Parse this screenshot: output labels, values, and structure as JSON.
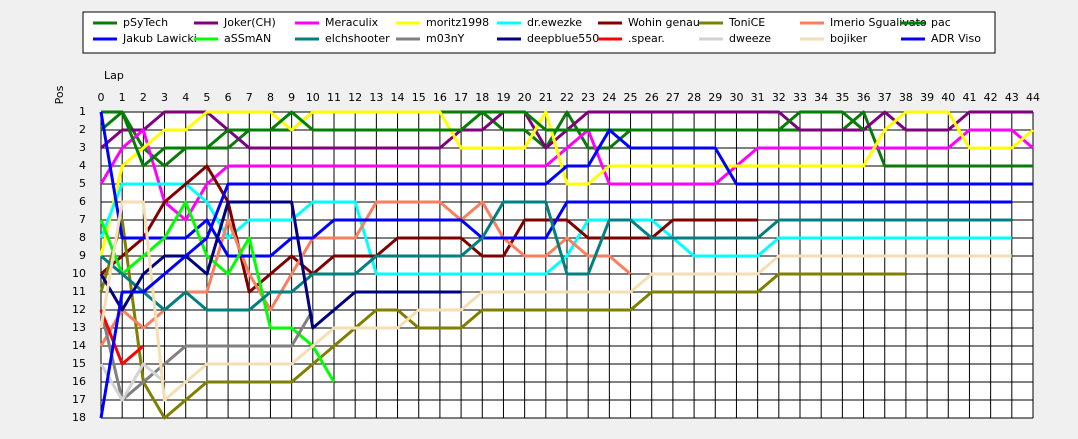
{
  "chart_data": {
    "type": "line",
    "x_label": "Lap",
    "y_label": "Pos",
    "xlim": [
      0,
      44
    ],
    "ylim": [
      18,
      1
    ],
    "grid": true,
    "x": [
      0,
      1,
      2,
      3,
      4,
      5,
      6,
      7,
      8,
      9,
      10,
      11,
      12,
      13,
      14,
      15,
      16,
      17,
      18,
      19,
      20,
      21,
      22,
      23,
      24,
      25,
      26,
      27,
      28,
      29,
      30,
      31,
      32,
      33,
      34,
      35,
      36,
      37,
      38,
      39,
      40,
      41,
      42,
      43,
      44
    ],
    "xticks": [
      0,
      1,
      2,
      3,
      4,
      5,
      6,
      7,
      8,
      9,
      10,
      11,
      12,
      13,
      14,
      15,
      16,
      17,
      18,
      19,
      20,
      21,
      22,
      23,
      24,
      25,
      26,
      27,
      28,
      29,
      30,
      31,
      32,
      33,
      34,
      35,
      36,
      37,
      38,
      39,
      40,
      41,
      42,
      43,
      44
    ],
    "yticks": [
      1,
      2,
      3,
      4,
      5,
      6,
      7,
      8,
      9,
      10,
      11,
      12,
      13,
      14,
      15,
      16,
      17,
      18
    ],
    "series": [
      {
        "name": "pSyTech",
        "color": "#0a7a0a",
        "values": [
          1,
          1,
          3,
          4,
          3,
          3,
          3,
          2,
          2,
          2,
          1,
          1,
          1,
          1,
          1,
          1,
          1,
          1,
          1,
          2,
          2,
          3,
          1,
          3,
          3,
          2,
          2,
          2,
          2,
          2,
          2,
          2,
          2,
          2,
          2,
          2,
          1,
          4,
          4,
          4,
          4,
          4,
          4,
          4,
          4
        ]
      },
      {
        "name": "Joker(CH)",
        "color": "#800080",
        "values": [
          3,
          2,
          2,
          1,
          1,
          1,
          2,
          3,
          3,
          3,
          3,
          3,
          3,
          3,
          3,
          3,
          3,
          2,
          2,
          1,
          1,
          3,
          2,
          1,
          1,
          1,
          1,
          1,
          1,
          1,
          1,
          1,
          1,
          2,
          2,
          2,
          2,
          1,
          2,
          2,
          2,
          1,
          1,
          1,
          1
        ]
      },
      {
        "name": "Meraculix",
        "color": "#ff00ff",
        "values": [
          5,
          3,
          2,
          6,
          7,
          5,
          4,
          4,
          4,
          4,
          4,
          4,
          4,
          4,
          4,
          4,
          4,
          4,
          4,
          4,
          4,
          4,
          3,
          2,
          5,
          5,
          5,
          5,
          5,
          5,
          4,
          3,
          3,
          3,
          3,
          3,
          3,
          3,
          3,
          3,
          3,
          2,
          2,
          2,
          3
        ]
      },
      {
        "name": "moritz1998",
        "color": "#ffff00",
        "values": [
          9,
          4,
          3,
          2,
          2,
          1,
          1,
          1,
          1,
          2,
          1,
          1,
          1,
          1,
          1,
          1,
          1,
          3,
          3,
          3,
          3,
          1,
          5,
          5,
          4,
          4,
          4,
          4,
          4,
          4,
          4,
          4,
          4,
          4,
          4,
          4,
          4,
          2,
          1,
          1,
          1,
          3,
          3,
          3,
          2
        ]
      },
      {
        "name": "dr.ewezke",
        "color": "#00ffff",
        "values": [
          8,
          5,
          5,
          5,
          5,
          6,
          8,
          7,
          7,
          7,
          6,
          6,
          6,
          10,
          10,
          10,
          10,
          10,
          10,
          10,
          10,
          10,
          9,
          7,
          7,
          7,
          7,
          8,
          9,
          9,
          9,
          9,
          8,
          8,
          8,
          8,
          8,
          8,
          8,
          8,
          8,
          8,
          8,
          8,
          null
        ]
      },
      {
        "name": "Wohin genau",
        "color": "#800000",
        "values": [
          10,
          9,
          8,
          6,
          5,
          4,
          6,
          11,
          10,
          9,
          10,
          9,
          9,
          9,
          8,
          8,
          8,
          8,
          9,
          9,
          7,
          7,
          7,
          8,
          8,
          8,
          8,
          7,
          7,
          7,
          7,
          7,
          null,
          null,
          null,
          null,
          null,
          null,
          null,
          null,
          null,
          null,
          null,
          null,
          null
        ]
      },
      {
        "name": "ToniCE",
        "color": "#808000",
        "values": [
          11,
          7,
          16,
          18,
          17,
          16,
          16,
          16,
          16,
          16,
          15,
          14,
          13,
          12,
          12,
          13,
          13,
          13,
          12,
          12,
          12,
          12,
          12,
          12,
          12,
          12,
          11,
          11,
          11,
          11,
          11,
          11,
          10,
          10,
          10,
          10,
          10,
          10,
          10,
          null,
          null,
          null,
          null,
          null,
          null
        ]
      },
      {
        "name": "Imerio Sgualivato",
        "color": "#fa7f5f",
        "values": [
          14,
          12,
          13,
          12,
          11,
          11,
          7,
          10,
          12,
          10,
          8,
          8,
          8,
          6,
          6,
          6,
          6,
          7,
          6,
          8,
          9,
          9,
          8,
          9,
          9,
          10,
          null,
          null,
          null,
          null,
          null,
          null,
          null,
          null,
          null,
          null,
          null,
          null,
          null,
          null,
          null,
          null,
          null,
          null,
          null
        ]
      },
      {
        "name": "pac",
        "color": "#008000",
        "values": [
          2,
          1,
          4,
          3,
          3,
          3,
          2,
          2,
          2,
          1,
          2,
          2,
          2,
          2,
          2,
          2,
          2,
          2,
          1,
          1,
          1,
          2,
          2,
          2,
          2,
          2,
          2,
          2,
          2,
          2,
          2,
          2,
          2,
          1,
          1,
          1,
          2,
          null,
          null,
          null,
          null,
          null,
          null,
          null,
          null
        ]
      },
      {
        "name": "Jakub Lawicki",
        "color": "#0000ff",
        "values": [
          1,
          8,
          8,
          8,
          8,
          7,
          9,
          9,
          9,
          8,
          8,
          7,
          7,
          7,
          7,
          7,
          7,
          7,
          8,
          8,
          8,
          8,
          6,
          6,
          6,
          6,
          6,
          6,
          6,
          6,
          6,
          6,
          6,
          6,
          6,
          6,
          6,
          6,
          6,
          6,
          6,
          6,
          6,
          6,
          null
        ]
      },
      {
        "name": "aSSmAN",
        "color": "#00ff00",
        "values": [
          7,
          10,
          9,
          8,
          6,
          9,
          10,
          8,
          13,
          13,
          14,
          16,
          null,
          null,
          null,
          null,
          null,
          null,
          null,
          null,
          null,
          null,
          null,
          null,
          null,
          null,
          null,
          null,
          null,
          null,
          null,
          null,
          null,
          null,
          null,
          null,
          null,
          null,
          null,
          null,
          null,
          null,
          null,
          null,
          null
        ]
      },
      {
        "name": "elchshooter",
        "color": "#008080",
        "values": [
          9,
          10,
          11,
          12,
          11,
          12,
          12,
          12,
          11,
          11,
          10,
          10,
          10,
          9,
          9,
          9,
          9,
          9,
          8,
          6,
          6,
          6,
          10,
          10,
          7,
          7,
          8,
          8,
          8,
          8,
          8,
          8,
          7,
          7,
          7,
          7,
          7,
          7,
          7,
          7,
          7,
          7,
          7,
          7,
          null
        ]
      },
      {
        "name": "m03nY",
        "color": "#808080",
        "values": [
          12,
          17,
          16,
          15,
          14,
          14,
          14,
          14,
          14,
          14,
          12,
          null,
          null,
          null,
          null,
          null,
          null,
          null,
          null,
          null,
          null,
          null,
          null,
          null,
          null,
          null,
          null,
          null,
          null,
          null,
          null,
          null,
          null,
          null,
          null,
          null,
          null,
          null,
          null,
          null,
          null,
          null,
          null,
          null,
          null
        ]
      },
      {
        "name": "deepblue550",
        "color": "#000080",
        "values": [
          10,
          12,
          10,
          9,
          9,
          10,
          6,
          6,
          6,
          6,
          13,
          12,
          11,
          11,
          11,
          11,
          11,
          11,
          null,
          null,
          null,
          null,
          null,
          null,
          null,
          null,
          null,
          null,
          null,
          null,
          null,
          null,
          null,
          null,
          null,
          null,
          null,
          null,
          null,
          null,
          null,
          null,
          null,
          null,
          null
        ]
      },
      {
        "name": ".spear.",
        "color": "#ff0000",
        "values": [
          12,
          15,
          14,
          null,
          null,
          null,
          null,
          null,
          null,
          null,
          null,
          null,
          null,
          null,
          null,
          null,
          null,
          null,
          null,
          null,
          null,
          null,
          null,
          null,
          null,
          null,
          null,
          null,
          null,
          null,
          null,
          null,
          null,
          null,
          null,
          null,
          null,
          null,
          null,
          null,
          null,
          null,
          null,
          null,
          null
        ]
      },
      {
        "name": "dweeze",
        "color": "#d3d3d3",
        "values": [
          15,
          17,
          15,
          16,
          null,
          null,
          null,
          null,
          null,
          null,
          null,
          null,
          null,
          null,
          null,
          null,
          null,
          null,
          null,
          null,
          null,
          null,
          null,
          null,
          null,
          null,
          null,
          null,
          null,
          null,
          null,
          null,
          null,
          null,
          null,
          null,
          null,
          null,
          null,
          null,
          null,
          null,
          null,
          null,
          null
        ]
      },
      {
        "name": "bojiker",
        "color": "#f5deb3",
        "values": [
          13,
          6,
          6,
          17,
          16,
          15,
          15,
          15,
          15,
          15,
          14,
          13,
          13,
          13,
          13,
          12,
          12,
          12,
          11,
          11,
          11,
          11,
          11,
          11,
          11,
          11,
          10,
          10,
          10,
          10,
          10,
          10,
          9,
          9,
          9,
          9,
          9,
          9,
          9,
          9,
          9,
          9,
          9,
          9,
          null
        ]
      },
      {
        "name": "ADR Viso",
        "color": "#0000ff",
        "values": [
          18,
          11,
          11,
          10,
          9,
          8,
          5,
          5,
          5,
          5,
          5,
          5,
          5,
          5,
          5,
          5,
          5,
          5,
          5,
          5,
          5,
          5,
          4,
          4,
          2,
          3,
          3,
          3,
          3,
          3,
          5,
          5,
          5,
          5,
          5,
          5,
          5,
          5,
          5,
          5,
          5,
          5,
          5,
          5,
          5
        ]
      }
    ]
  }
}
